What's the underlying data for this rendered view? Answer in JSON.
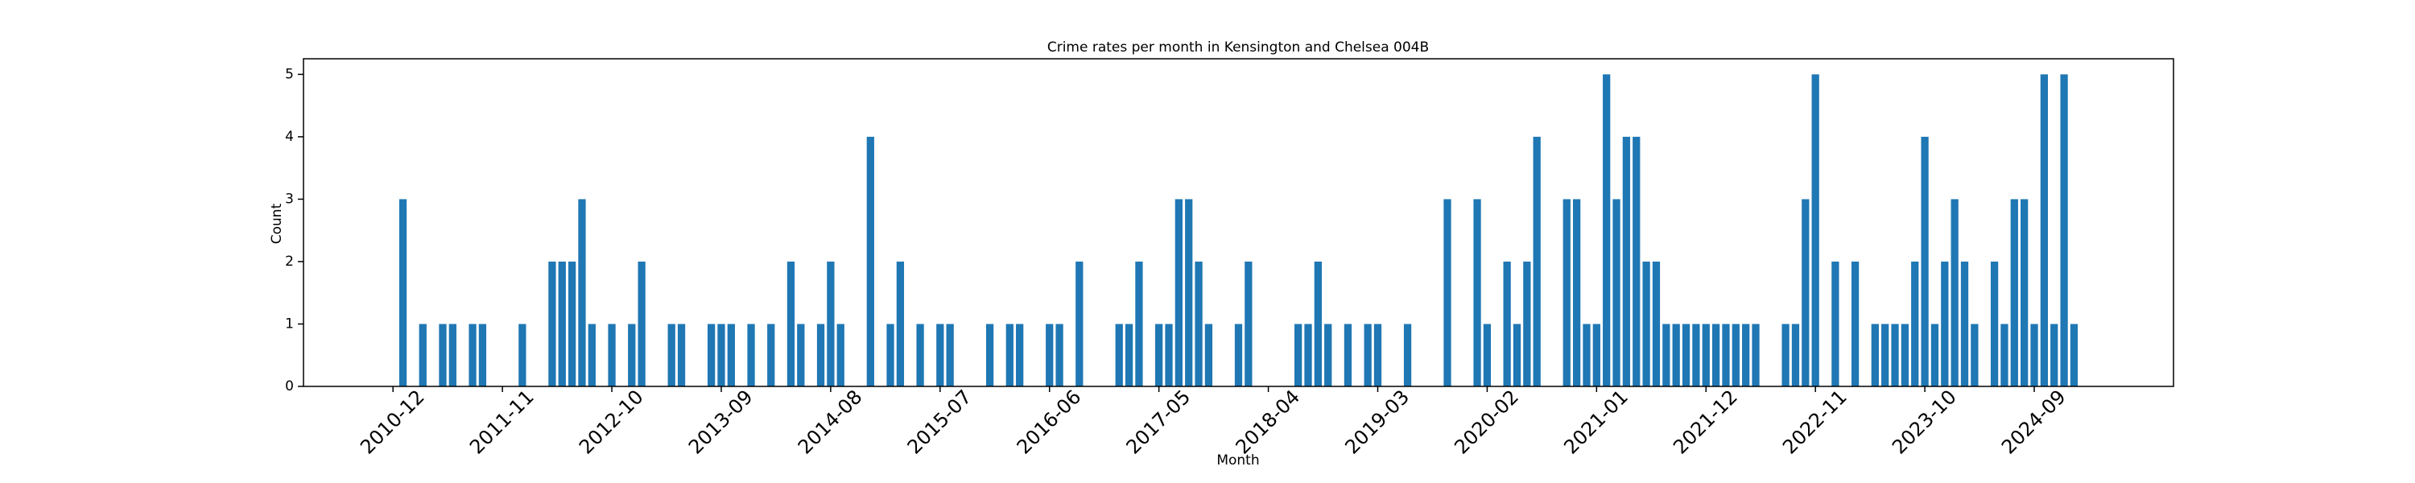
{
  "chart_data": {
    "type": "bar",
    "title": "Crime rates per month in Kensington and Chelsea 004B",
    "x_label": "Month",
    "y_label": "Count",
    "color": "#1f77b4",
    "x": [
      "2011-01",
      "2011-03",
      "2011-05",
      "2011-06",
      "2011-08",
      "2011-09",
      "2012-01",
      "2012-04",
      "2012-05",
      "2012-06",
      "2012-07",
      "2012-08",
      "2012-10",
      "2012-12",
      "2013-01",
      "2013-04",
      "2013-05",
      "2013-08",
      "2013-09",
      "2013-10",
      "2013-12",
      "2014-02",
      "2014-04",
      "2014-05",
      "2014-07",
      "2014-08",
      "2014-09",
      "2014-12",
      "2015-02",
      "2015-03",
      "2015-05",
      "2015-07",
      "2015-08",
      "2015-12",
      "2016-02",
      "2016-03",
      "2016-06",
      "2016-07",
      "2016-09",
      "2017-01",
      "2017-02",
      "2017-03",
      "2017-05",
      "2017-06",
      "2017-07",
      "2017-08",
      "2017-09",
      "2017-10",
      "2018-01",
      "2018-02",
      "2018-07",
      "2018-08",
      "2018-09",
      "2018-10",
      "2018-12",
      "2019-02",
      "2019-03",
      "2019-06",
      "2019-10",
      "2020-01",
      "2020-02",
      "2020-04",
      "2020-05",
      "2020-06",
      "2020-07",
      "2020-10",
      "2020-11",
      "2020-12",
      "2021-01",
      "2021-02",
      "2021-03",
      "2021-04",
      "2021-05",
      "2021-06",
      "2021-07",
      "2021-08",
      "2021-09",
      "2021-10",
      "2021-11",
      "2021-12",
      "2022-01",
      "2022-02",
      "2022-03",
      "2022-04",
      "2022-05",
      "2022-08",
      "2022-09",
      "2022-10",
      "2022-11",
      "2023-01",
      "2023-03",
      "2023-05",
      "2023-06",
      "2023-07",
      "2023-08",
      "2023-09",
      "2023-10",
      "2023-11",
      "2023-12",
      "2024-01",
      "2024-02",
      "2024-03",
      "2024-05",
      "2024-06",
      "2024-07",
      "2024-08",
      "2024-09",
      "2024-10",
      "2024-11",
      "2024-12",
      "2025-01"
    ],
    "values": [
      3,
      1,
      1,
      1,
      1,
      1,
      1,
      2,
      2,
      2,
      3,
      1,
      1,
      1,
      2,
      1,
      1,
      1,
      1,
      1,
      1,
      1,
      2,
      1,
      1,
      2,
      1,
      4,
      1,
      2,
      1,
      1,
      1,
      1,
      1,
      1,
      1,
      1,
      2,
      1,
      1,
      2,
      1,
      1,
      3,
      3,
      2,
      1,
      1,
      2,
      1,
      1,
      2,
      1,
      1,
      1,
      1,
      1,
      3,
      3,
      1,
      2,
      1,
      2,
      4,
      3,
      3,
      1,
      1,
      5,
      3,
      4,
      4,
      2,
      2,
      1,
      1,
      1,
      1,
      1,
      1,
      1,
      1,
      1,
      1,
      1,
      1,
      3,
      5,
      2,
      2,
      1,
      1,
      1,
      1,
      2,
      4,
      1,
      2,
      3,
      2,
      1,
      2,
      1,
      3,
      3,
      1,
      5,
      1,
      5,
      1
    ],
    "xlim": [
      "2010-03",
      "2025-11"
    ],
    "xticks": [
      "2010-12",
      "2011-11",
      "2012-10",
      "2013-09",
      "2014-08",
      "2015-07",
      "2016-06",
      "2017-05",
      "2018-04",
      "2019-03",
      "2020-02",
      "2021-01",
      "2021-12",
      "2022-11",
      "2023-10",
      "2024-09"
    ],
    "ylim": [
      0,
      5.25
    ],
    "yticks": [
      0,
      1,
      2,
      3,
      4,
      5
    ]
  }
}
